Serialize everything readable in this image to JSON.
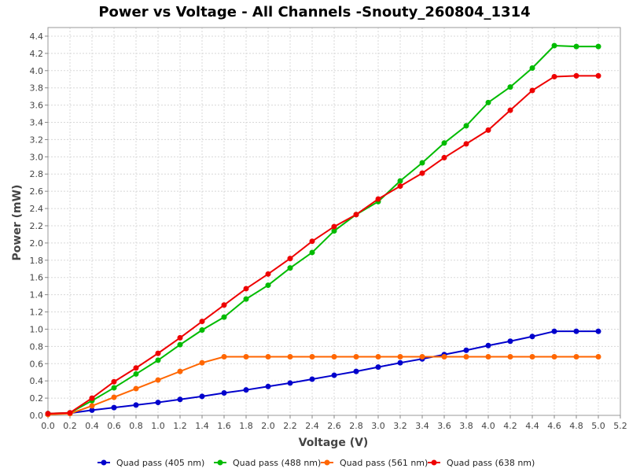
{
  "chart_data": {
    "type": "line",
    "title": "Power vs Voltage - All Channels -Snouty_260804_1314",
    "xlabel": "Voltage (V)",
    "ylabel": "Power (mW)",
    "xlim": [
      0.0,
      5.2
    ],
    "ylim": [
      0.0,
      4.5
    ],
    "xticks": [
      "0.0",
      "0.2",
      "0.4",
      "0.6",
      "0.8",
      "1.0",
      "1.2",
      "1.4",
      "1.6",
      "1.8",
      "2.0",
      "2.2",
      "2.4",
      "2.6",
      "2.8",
      "3.0",
      "3.2",
      "3.4",
      "3.6",
      "3.8",
      "4.0",
      "4.2",
      "4.4",
      "4.6",
      "4.8",
      "5.0",
      "5.2"
    ],
    "yticks": [
      "0.0",
      "0.2",
      "0.4",
      "0.6",
      "0.8",
      "1.0",
      "1.2",
      "1.4",
      "1.6",
      "1.8",
      "2.0",
      "2.2",
      "2.4",
      "2.6",
      "2.8",
      "3.0",
      "3.2",
      "3.4",
      "3.6",
      "3.8",
      "4.0",
      "4.2",
      "4.4"
    ],
    "grid": true,
    "legend_position": "bottom",
    "x": [
      0.0,
      0.2,
      0.4,
      0.6,
      0.8,
      1.0,
      1.2,
      1.4,
      1.6,
      1.8,
      2.0,
      2.2,
      2.4,
      2.6,
      2.8,
      3.0,
      3.2,
      3.4,
      3.6,
      3.8,
      4.0,
      4.2,
      4.4,
      4.6,
      4.8,
      5.0
    ],
    "series": [
      {
        "name": "Quad pass (405 nm)",
        "color": "#0000cc",
        "values": [
          0.02,
          0.025,
          0.06,
          0.09,
          0.12,
          0.15,
          0.185,
          0.22,
          0.26,
          0.295,
          0.335,
          0.375,
          0.42,
          0.465,
          0.51,
          0.56,
          0.61,
          0.655,
          0.705,
          0.755,
          0.81,
          0.86,
          0.915,
          0.975,
          0.975,
          0.975
        ]
      },
      {
        "name": "Quad pass (488 nm)",
        "color": "#00bb00",
        "values": [
          0.02,
          0.03,
          0.17,
          0.32,
          0.48,
          0.64,
          0.82,
          0.99,
          1.14,
          1.35,
          1.51,
          1.71,
          1.89,
          2.14,
          2.33,
          2.48,
          2.72,
          2.93,
          3.16,
          3.36,
          3.63,
          3.81,
          4.03,
          4.29,
          4.28,
          4.28
        ]
      },
      {
        "name": "Quad pass (561 nm)",
        "color": "#ff6600",
        "values": [
          0.01,
          0.02,
          0.11,
          0.21,
          0.31,
          0.41,
          0.51,
          0.61,
          0.68,
          0.68,
          0.68,
          0.68,
          0.68,
          0.68,
          0.68,
          0.68,
          0.68,
          0.68,
          0.68,
          0.68,
          0.68,
          0.68,
          0.68,
          0.68,
          0.68,
          0.68
        ]
      },
      {
        "name": "Quad pass (638 nm)",
        "color": "#ee0000",
        "values": [
          0.02,
          0.03,
          0.2,
          0.39,
          0.55,
          0.72,
          0.9,
          1.09,
          1.28,
          1.47,
          1.64,
          1.82,
          2.02,
          2.19,
          2.33,
          2.51,
          2.66,
          2.81,
          2.99,
          3.15,
          3.31,
          3.54,
          3.77,
          3.93,
          3.94,
          3.94
        ]
      }
    ]
  }
}
